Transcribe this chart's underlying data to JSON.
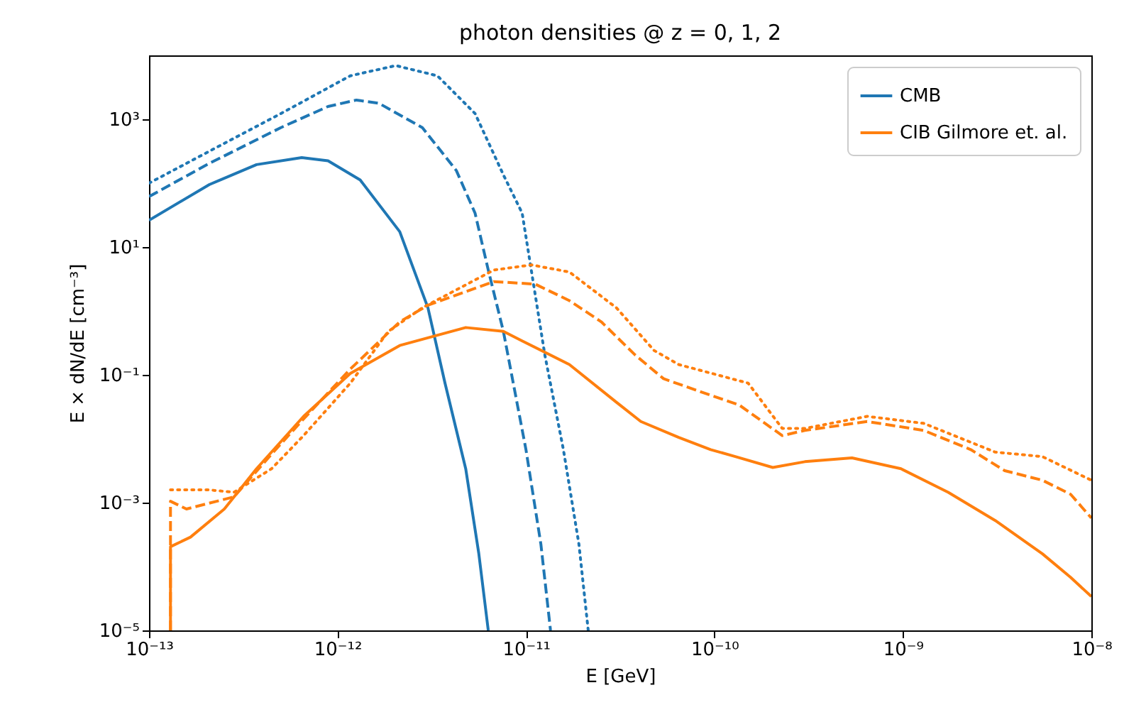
{
  "chart_data": {
    "type": "line",
    "title": "photon densities @ z = 0, 1, 2",
    "xlabel": "E [GeV]",
    "ylabel": "E × dN/dE [cm⁻³]",
    "log": "xy",
    "legend": "top right",
    "grid": false,
    "xlim": [
      1e-13,
      1e-08
    ],
    "xticks": [
      {
        "value": 1e-13,
        "label": "10⁻¹³"
      },
      {
        "value": 1e-12,
        "label": "10⁻¹²"
      },
      {
        "value": 1e-11,
        "label": "10⁻¹¹"
      },
      {
        "value": 1e-10,
        "label": "10⁻¹⁰"
      },
      {
        "value": 1e-09,
        "label": "10⁻⁹"
      },
      {
        "value": 1e-08,
        "label": "10⁻⁸"
      }
    ],
    "ylim": [
      1e-05,
      10000.0
    ],
    "yticks": [
      {
        "value": 1e-05,
        "label": "10⁻⁵"
      },
      {
        "value": 0.001,
        "label": "10⁻³"
      },
      {
        "value": 0.1,
        "label": "10⁻¹"
      },
      {
        "value": 10,
        "label": "10¹"
      },
      {
        "value": 1000,
        "label": "10³"
      }
    ],
    "series": [
      {
        "name": "CMB",
        "color": "#1f77b4",
        "line_style": "solid",
        "x": [
          1e-13,
          2.09e-13,
          3.72e-13,
          6.46e-13,
          8.91e-13,
          1.32e-12,
          2.14e-12,
          3.02e-12,
          3.72e-12,
          4.79e-12,
          5.62e-12,
          6.31e-12
        ],
        "values": [
          26.3,
          95,
          195,
          251,
          224,
          112,
          17.4,
          1.12,
          0.074,
          0.0034,
          0.00016,
          1e-05
        ]
      },
      {
        "color": "#1f77b4",
        "line_style": "dashed",
        "x": [
          1e-13,
          2.09e-13,
          5.01e-13,
          8.91e-13,
          1.26e-12,
          1.66e-12,
          2.82e-12,
          4.27e-12,
          5.37e-12,
          6.31e-12,
          7.59e-12,
          1e-11,
          1.2e-11,
          1.35e-11
        ],
        "values": [
          61.7,
          204,
          741,
          1585,
          2000,
          1778,
          741,
          158,
          33.9,
          4.37,
          0.479,
          0.00676,
          0.000224,
          1e-05
        ]
      },
      {
        "color": "#1f77b4",
        "line_style": "dotted",
        "x": [
          1e-13,
          2.09e-13,
          5.01e-13,
          1.17e-12,
          2.04e-12,
          3.39e-12,
          5.37e-12,
          7.59e-12,
          9.55e-12,
          1.26e-11,
          1.58e-11,
          1.91e-11,
          2.14e-11
        ],
        "values": [
          100,
          316,
          1230,
          4790,
          6920,
          4790,
          1230,
          135,
          33.9,
          0.204,
          0.00676,
          0.000224,
          1e-05
        ]
      },
      {
        "name": "CIB Gilmore et. al.",
        "color": "#ff7f0e",
        "line_style": "solid",
        "x": [
          1.3e-13,
          1.3e-13,
          1.66e-13,
          2.51e-13,
          3.72e-13,
          6.61e-13,
          1.17e-12,
          2.14e-12,
          4.79e-12,
          7.59e-12,
          9.55e-12,
          1.7e-11,
          3.02e-11,
          4.07e-11,
          6.46e-11,
          9.55e-11,
          1.29e-10,
          2.04e-10,
          3.02e-10,
          5.37e-10,
          9.77e-10,
          1.74e-09,
          3.09e-09,
          5.5e-09,
          7.76e-09,
          1e-08
        ],
        "values": [
          1e-05,
          0.000204,
          0.000288,
          0.000794,
          0.00339,
          0.0224,
          0.105,
          0.288,
          0.55,
          0.479,
          0.339,
          0.145,
          0.0372,
          0.0186,
          0.0105,
          0.00676,
          0.00525,
          0.00355,
          0.00437,
          0.00501,
          0.00339,
          0.00145,
          0.000525,
          0.000158,
          6.76e-05,
          3.39e-05
        ]
      },
      {
        "color": "#ff7f0e",
        "line_style": "dashed",
        "x": [
          1.3e-13,
          1.3e-13,
          1.58e-13,
          2.82e-13,
          4.47e-13,
          6.61e-13,
          1.17e-12,
          2.14e-12,
          3.02e-12,
          6.76e-12,
          1.12e-11,
          1.7e-11,
          2.51e-11,
          3.8e-11,
          5.37e-11,
          9.55e-11,
          1.35e-10,
          2.29e-10,
          3.02e-10,
          6.46e-10,
          1.29e-09,
          2.29e-09,
          3.47e-09,
          5.5e-09,
          7.76e-09,
          1e-08
        ],
        "values": [
          1e-05,
          0.00105,
          0.000794,
          0.00123,
          0.00575,
          0.0204,
          0.123,
          0.676,
          1.23,
          2.88,
          2.63,
          1.45,
          0.676,
          0.204,
          0.0871,
          0.0479,
          0.0339,
          0.0112,
          0.0135,
          0.0186,
          0.0135,
          0.00676,
          0.00316,
          0.00224,
          0.00135,
          0.000575
        ]
      },
      {
        "color": "#ff7f0e",
        "line_style": "dotted",
        "x": [
          1.3e-13,
          2.09e-13,
          2.82e-13,
          4.47e-13,
          6.61e-13,
          1.17e-12,
          1.86e-12,
          2.82e-12,
          6.76e-12,
          1.07e-11,
          1.7e-11,
          3.02e-11,
          4.79e-11,
          6.46e-11,
          1.51e-10,
          2.29e-10,
          3.02e-10,
          6.46e-10,
          1.29e-09,
          3.09e-09,
          5.5e-09,
          1e-08
        ],
        "values": [
          0.00158,
          0.00158,
          0.00145,
          0.00339,
          0.0112,
          0.0741,
          0.479,
          1.12,
          4.37,
          5.25,
          4.07,
          1.12,
          0.24,
          0.145,
          0.0741,
          0.0145,
          0.0145,
          0.0224,
          0.0174,
          0.00617,
          0.00525,
          0.00224
        ]
      }
    ]
  }
}
